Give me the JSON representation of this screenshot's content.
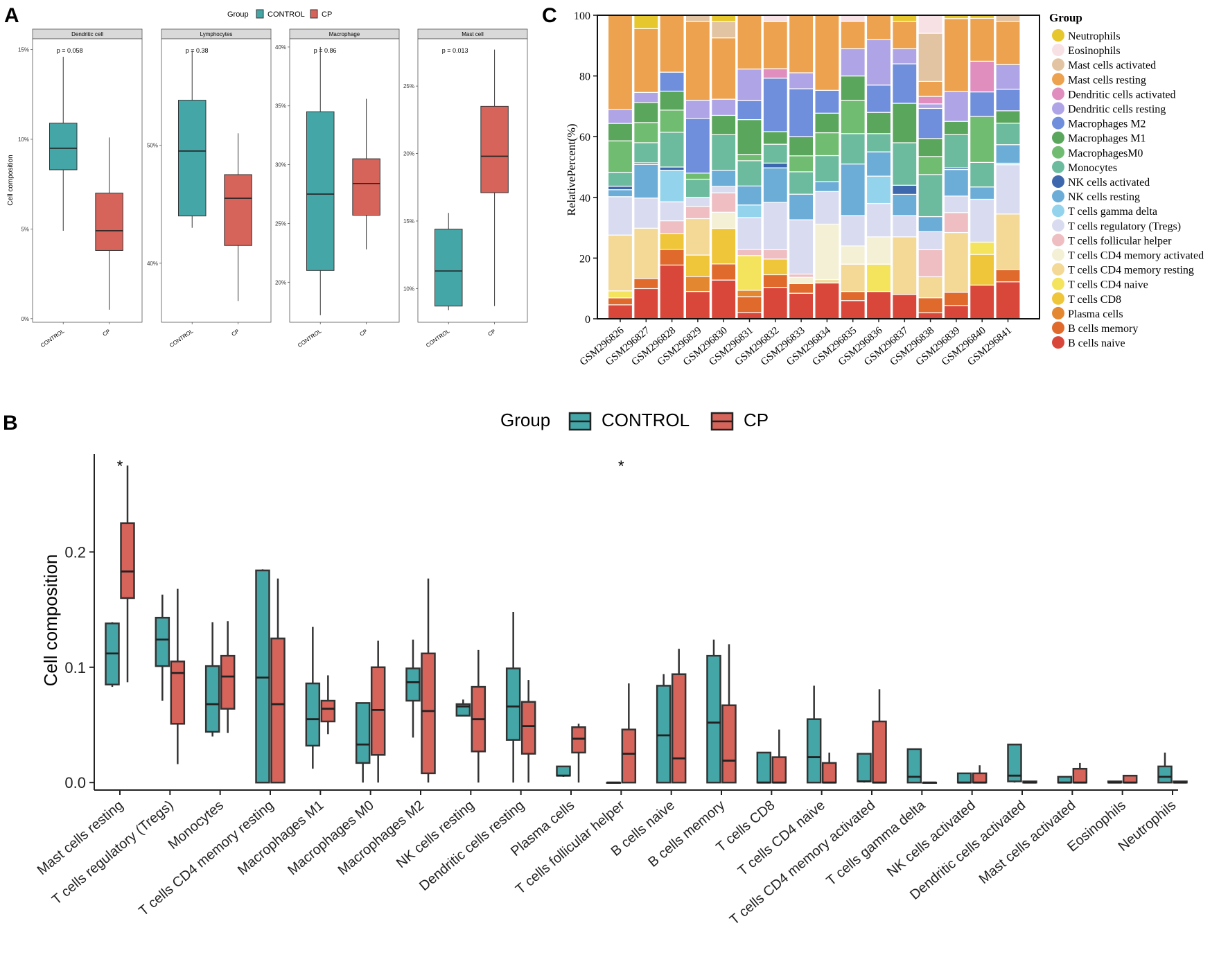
{
  "panel_labels": {
    "a": "A",
    "b": "B",
    "c": "C"
  },
  "colors": {
    "control": "#45A6A8",
    "cp": "#D6645B",
    "strip": "#D9D9D9"
  },
  "chart_data": [
    {
      "id": "A",
      "type": "boxplot",
      "legend_title": "Group",
      "legend": [
        "CONTROL",
        "CP"
      ],
      "ylabel": "Cell composition",
      "categories": [
        "CONTROL",
        "CP"
      ],
      "facets": [
        {
          "title": "Dendritic cell",
          "p_label": "p = 0.058",
          "ylim": [
            -0.2,
            15.6
          ],
          "ticks": [
            0,
            5,
            10,
            15
          ],
          "tick_labels": [
            "0%",
            "5%",
            "10%",
            "15%"
          ],
          "boxes": [
            {
              "group": "CONTROL",
              "min": 4.9,
              "q1": 8.3,
              "median": 9.5,
              "q3": 10.9,
              "max": 14.6
            },
            {
              "group": "CP",
              "min": 0.5,
              "q1": 3.8,
              "median": 4.9,
              "q3": 7.0,
              "max": 10.1
            }
          ]
        },
        {
          "title": "Lymphocytes",
          "p_label": "p = 0.38",
          "ylim": [
            35.0,
            59.0
          ],
          "ticks": [
            40,
            50
          ],
          "tick_labels": [
            "40%",
            "50%"
          ],
          "boxes": [
            {
              "group": "CONTROL",
              "min": 43.0,
              "q1": 44.0,
              "median": 49.5,
              "q3": 53.8,
              "max": 58.0
            },
            {
              "group": "CP",
              "min": 36.8,
              "q1": 41.5,
              "median": 45.5,
              "q3": 47.5,
              "max": 51.0
            }
          ]
        },
        {
          "title": "Macrophage",
          "p_label": "p = 0.86",
          "ylim": [
            16.6,
            40.7
          ],
          "ticks": [
            20,
            25,
            30,
            35,
            40
          ],
          "tick_labels": [
            "20%",
            "25%",
            "30%",
            "35%",
            "40%"
          ],
          "boxes": [
            {
              "group": "CONTROL",
              "min": 17.2,
              "q1": 21.0,
              "median": 27.5,
              "q3": 34.5,
              "max": 40.0
            },
            {
              "group": "CP",
              "min": 22.8,
              "q1": 25.7,
              "median": 28.4,
              "q3": 30.5,
              "max": 35.6
            }
          ]
        },
        {
          "title": "Mast cell",
          "p_label": "p = 0.013",
          "ylim": [
            7.5,
            28.5
          ],
          "ticks": [
            10,
            15,
            20,
            25
          ],
          "tick_labels": [
            "10%",
            "15%",
            "20%",
            "25%"
          ],
          "boxes": [
            {
              "group": "CONTROL",
              "min": 8.4,
              "q1": 8.7,
              "median": 11.3,
              "q3": 14.4,
              "max": 15.6
            },
            {
              "group": "CP",
              "min": 8.7,
              "q1": 17.1,
              "median": 19.8,
              "q3": 23.5,
              "max": 27.7
            }
          ]
        }
      ]
    },
    {
      "id": "B",
      "type": "boxplot",
      "legend_title": "Group",
      "legend": [
        "CONTROL",
        "CP"
      ],
      "ylabel": "Cell composition",
      "ylim": [
        -0.0065,
        0.285
      ],
      "ticks": [
        0.0,
        0.1,
        0.2
      ],
      "tick_labels": [
        "0.0",
        "0.1",
        "0.2"
      ],
      "categories": [
        "Mast cells resting",
        "T cells regulatory (Tregs)",
        "Monocytes",
        "T cells CD4 memory resting",
        "Macrophages M1",
        "Macrophages M0",
        "Macrophages M2",
        "NK cells resting",
        "Dendritic cells resting",
        "Plasma cells",
        "T cells follicular helper",
        "B cells naive",
        "B cells memory",
        "T cells CD8",
        "T cells CD4 naive",
        "T cells CD4 memory activated",
        "T cells gamma delta",
        "NK cells activated",
        "Dendritic cells activated",
        "Mast cells activated",
        "Eosinophils",
        "Neutrophils"
      ],
      "significance": [
        "*",
        "",
        "",
        "",
        "",
        "",
        "",
        "",
        "",
        "",
        "*",
        "",
        "",
        "",
        "",
        "",
        "",
        "",
        "",
        "",
        "",
        ""
      ],
      "series": [
        {
          "name": "CONTROL",
          "boxes": [
            [
              0.083,
              0.085,
              0.112,
              0.138,
              0.139
            ],
            [
              0.071,
              0.101,
              0.124,
              0.143,
              0.163
            ],
            [
              0.04,
              0.044,
              0.068,
              0.101,
              0.139
            ],
            [
              0.0,
              0.0,
              0.091,
              0.184,
              0.185
            ],
            [
              0.012,
              0.032,
              0.055,
              0.086,
              0.135
            ],
            [
              0.0,
              0.017,
              0.033,
              0.069,
              0.069
            ],
            [
              0.039,
              0.071,
              0.087,
              0.099,
              0.124
            ],
            [
              0.058,
              0.058,
              0.066,
              0.068,
              0.072
            ],
            [
              0.0,
              0.037,
              0.066,
              0.099,
              0.148
            ],
            [
              0.005,
              0.006,
              0.006,
              0.014,
              0.014
            ],
            [
              0.0,
              0.0,
              0.0,
              0.0,
              0.0
            ],
            [
              0.0,
              0.0,
              0.041,
              0.084,
              0.094
            ],
            [
              0.0,
              0.0,
              0.052,
              0.11,
              0.124
            ],
            [
              0.0,
              0.0,
              0.0,
              0.026,
              0.026
            ],
            [
              0.0,
              0.0,
              0.022,
              0.055,
              0.084
            ],
            [
              0.0,
              0.001,
              0.001,
              0.025,
              0.025
            ],
            [
              0.0,
              0.0,
              0.005,
              0.029,
              0.029
            ],
            [
              0.0,
              0.0,
              0.0,
              0.008,
              0.008
            ],
            [
              0.0,
              0.001,
              0.006,
              0.033,
              0.033
            ],
            [
              0.0,
              0.0,
              0.0,
              0.005,
              0.005
            ],
            [
              0.0,
              0.0,
              0.0,
              0.001,
              0.001
            ],
            [
              0.0,
              0.0,
              0.005,
              0.014,
              0.026
            ]
          ]
        },
        {
          "name": "CP",
          "boxes": [
            [
              0.087,
              0.16,
              0.183,
              0.225,
              0.275
            ],
            [
              0.016,
              0.051,
              0.095,
              0.105,
              0.168
            ],
            [
              0.043,
              0.064,
              0.092,
              0.11,
              0.14
            ],
            [
              0.0,
              0.0,
              0.068,
              0.125,
              0.177
            ],
            [
              0.042,
              0.053,
              0.064,
              0.071,
              0.093
            ],
            [
              0.0,
              0.024,
              0.063,
              0.1,
              0.123
            ],
            [
              0.0,
              0.008,
              0.062,
              0.112,
              0.177
            ],
            [
              0.0,
              0.027,
              0.055,
              0.083,
              0.115
            ],
            [
              0.0,
              0.025,
              0.049,
              0.07,
              0.089
            ],
            [
              0.0,
              0.026,
              0.038,
              0.048,
              0.051
            ],
            [
              0.0,
              0.0,
              0.025,
              0.046,
              0.086
            ],
            [
              0.0,
              0.0,
              0.021,
              0.094,
              0.116
            ],
            [
              0.0,
              0.0,
              0.019,
              0.067,
              0.12
            ],
            [
              0.0,
              0.0,
              0.0,
              0.022,
              0.046
            ],
            [
              0.0,
              0.0,
              0.0,
              0.017,
              0.026
            ],
            [
              0.0,
              0.0,
              0.0,
              0.053,
              0.081
            ],
            [
              0.0,
              0.0,
              0.0,
              0.0,
              0.0
            ],
            [
              0.0,
              0.0,
              0.0,
              0.008,
              0.015
            ],
            [
              0.0,
              0.0,
              0.0,
              0.001,
              0.001
            ],
            [
              0.0,
              0.0,
              0.0,
              0.012,
              0.017
            ],
            [
              0.0,
              0.0,
              0.0,
              0.006,
              0.006
            ],
            [
              0.0,
              0.0,
              0.0,
              0.001,
              0.001
            ]
          ]
        }
      ]
    },
    {
      "id": "C",
      "type": "stacked_bar",
      "ylabel": "RelativePercent(%)",
      "ylim": [
        0,
        100
      ],
      "ticks": [
        0,
        20,
        40,
        60,
        80,
        100
      ],
      "tick_labels": [
        "0",
        "20",
        "40",
        "60",
        "80",
        "100"
      ],
      "legend_title": "Group",
      "legend": [
        {
          "name": "Neutrophils",
          "color": "#E7C72E"
        },
        {
          "name": "Eosinophils",
          "color": "#F7E1E4"
        },
        {
          "name": "Mast cells activated",
          "color": "#E3C4A2"
        },
        {
          "name": "Mast cells resting",
          "color": "#EDA24F"
        },
        {
          "name": "Dendritic cells activated",
          "color": "#DF8EBE"
        },
        {
          "name": "Dendritic cells resting",
          "color": "#AFA5E6"
        },
        {
          "name": "Macrophages M2",
          "color": "#6F8EDB"
        },
        {
          "name": "Macrophages M1",
          "color": "#5AA65C"
        },
        {
          "name": "MacrophagesM0",
          "color": "#70BC71"
        },
        {
          "name": "Monocytes",
          "color": "#6DBB9F"
        },
        {
          "name": "NK cells activated",
          "color": "#3D68AE"
        },
        {
          "name": "NK cells resting",
          "color": "#6BADD7"
        },
        {
          "name": "T cells gamma delta",
          "color": "#93D4EC"
        },
        {
          "name": "T cells regulatory (Tregs)",
          "color": "#D9DCF1"
        },
        {
          "name": "T cells follicular helper",
          "color": "#EEBEC2"
        },
        {
          "name": "T cells CD4 memory activated",
          "color": "#F3F0D5"
        },
        {
          "name": "T cells CD4 memory resting",
          "color": "#F3D896"
        },
        {
          "name": "T cells CD4 naive",
          "color": "#F4E35D"
        },
        {
          "name": "T cells CD8",
          "color": "#EFC53A"
        },
        {
          "name": "Plasma cells",
          "color": "#E48731"
        },
        {
          "name": "B cells memory",
          "color": "#E06A2C"
        },
        {
          "name": "B cells naive",
          "color": "#D9473A"
        }
      ],
      "stack_order": [
        "B cells naive",
        "B cells memory",
        "Plasma cells",
        "T cells CD8",
        "T cells CD4 naive",
        "T cells CD4 memory resting",
        "T cells CD4 memory activated",
        "T cells follicular helper",
        "T cells regulatory (Tregs)",
        "T cells gamma delta",
        "NK cells resting",
        "NK cells activated",
        "Monocytes",
        "MacrophagesM0",
        "Macrophages M1",
        "Macrophages M2",
        "Dendritic cells resting",
        "Dendritic cells activated",
        "Mast cells resting",
        "Mast cells activated",
        "Eosinophils",
        "Neutrophils"
      ],
      "samples": [
        "GSM296826",
        "GSM296827",
        "GSM296828",
        "GSM296829",
        "GSM296830",
        "GSM296831",
        "GSM296832",
        "GSM296833",
        "GSM296834",
        "GSM296835",
        "GSM296836",
        "GSM296837",
        "GSM296838",
        "GSM296839",
        "GSM296840",
        "GSM296841"
      ],
      "values": [
        [
          4,
          2,
          0,
          0,
          2,
          16,
          0,
          0,
          11,
          0,
          2,
          1,
          4,
          9,
          5,
          0,
          4,
          0,
          27,
          0,
          0,
          0
        ],
        [
          9,
          3,
          0,
          0,
          0,
          15,
          0,
          0,
          9,
          0,
          10,
          0.5,
          6,
          6,
          6,
          0,
          3,
          0,
          19,
          0,
          0,
          4
        ],
        [
          17,
          5,
          0,
          5,
          0,
          0,
          0,
          4,
          6,
          10,
          0,
          1,
          11,
          7,
          6,
          6,
          0,
          0,
          18,
          0,
          0,
          0
        ],
        [
          9,
          0,
          5,
          7,
          0,
          12,
          0,
          4,
          3,
          0,
          0,
          0,
          6,
          2,
          0,
          18,
          6,
          0,
          26,
          2,
          0,
          0
        ],
        [
          12,
          5,
          0,
          11,
          0,
          0,
          5,
          6,
          2,
          0,
          5,
          0,
          11,
          0,
          6,
          0,
          5,
          0,
          19,
          5,
          0,
          2
        ],
        [
          2,
          5,
          2,
          0,
          11,
          0,
          0,
          2,
          10,
          4,
          6,
          0,
          8,
          2,
          11,
          6,
          10,
          0,
          17,
          0,
          0,
          0
        ],
        [
          10,
          4,
          0,
          5,
          0,
          0,
          0,
          3,
          15,
          0,
          11,
          1.5,
          6,
          0,
          4,
          17,
          0,
          3,
          15,
          0,
          2,
          0
        ],
        [
          8,
          3,
          0,
          0,
          0,
          0,
          2,
          1,
          17,
          0,
          8,
          0,
          7,
          5,
          6,
          15,
          5,
          0,
          18,
          0,
          0,
          0
        ],
        [
          11,
          0,
          0,
          0,
          0,
          1,
          17,
          0,
          10,
          0,
          3,
          0,
          8,
          7,
          6,
          7,
          0,
          0,
          23,
          0,
          0,
          0
        ],
        [
          6,
          3,
          0,
          0,
          0,
          9,
          6,
          0,
          10,
          0,
          17,
          0,
          10,
          11,
          8,
          0,
          9,
          0,
          9,
          0,
          2,
          0
        ],
        [
          9,
          0,
          0,
          0,
          9,
          0,
          9,
          0,
          11,
          9,
          8,
          0,
          6,
          0,
          7,
          9,
          15,
          0,
          8,
          0,
          0,
          0
        ],
        [
          8,
          0,
          0,
          0,
          0,
          19,
          0,
          0,
          7,
          0,
          7,
          3,
          14,
          0,
          13,
          13,
          5,
          0,
          9,
          0,
          0,
          2
        ],
        [
          2,
          5,
          0,
          0,
          0,
          7,
          0,
          9,
          6,
          0,
          5,
          0,
          14,
          6,
          6,
          10,
          1.5,
          2.5,
          5,
          16,
          6,
          0
        ],
        [
          4,
          4,
          0,
          0,
          0,
          18,
          0,
          6,
          5,
          0,
          8,
          0.5,
          10,
          0,
          4,
          0,
          9,
          0,
          22,
          0,
          0,
          1
        ],
        [
          11,
          0,
          0,
          10,
          4,
          0,
          0,
          0,
          14,
          0,
          4,
          0,
          8,
          15,
          0,
          8,
          0,
          10,
          14,
          0,
          0,
          1
        ],
        [
          12,
          4,
          0,
          0,
          0,
          18,
          0,
          0,
          16,
          0.5,
          6,
          0,
          7,
          0,
          4,
          7,
          8,
          0,
          14,
          2,
          0,
          0
        ]
      ]
    }
  ]
}
